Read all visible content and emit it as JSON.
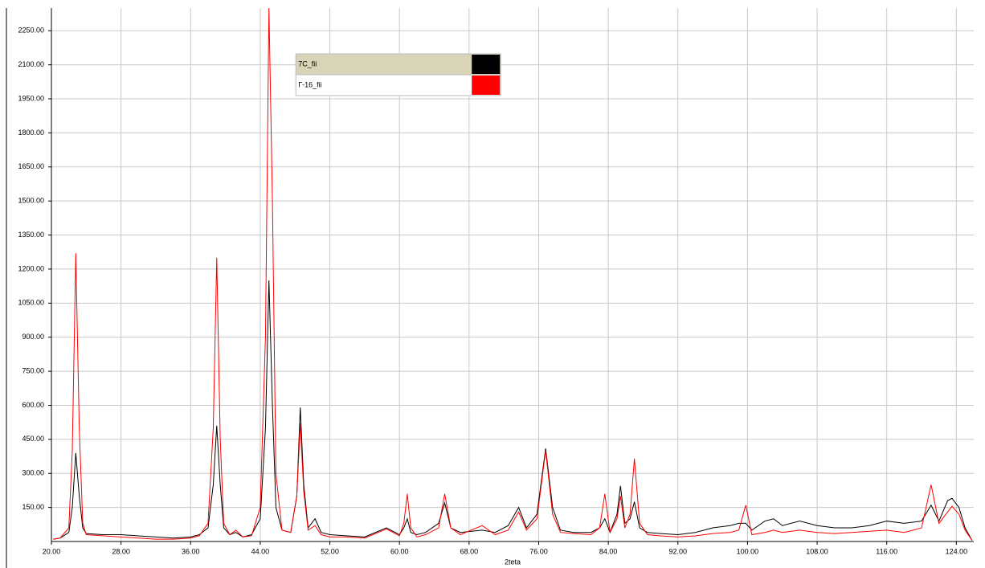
{
  "chart_data": {
    "type": "line",
    "xlabel": "2teta",
    "x": [
      20.2,
      21,
      22,
      22.4,
      22.8,
      23.2,
      23.6,
      24,
      26,
      28,
      30,
      32,
      34,
      36,
      37,
      38,
      38.6,
      39,
      39.4,
      39.8,
      40.5,
      41.2,
      42,
      43,
      44,
      44.6,
      45,
      45.4,
      45.8,
      46.5,
      47.5,
      48.2,
      48.6,
      49,
      49.5,
      50.3,
      51,
      52,
      54,
      56,
      58.5,
      60,
      60.5,
      60.9,
      61.3,
      62,
      63,
      64.5,
      65.2,
      65.9,
      67,
      69.5,
      71,
      72.5,
      73.7,
      74.6,
      75.8,
      76.8,
      77.6,
      78.5,
      80,
      82,
      83,
      83.6,
      84.2,
      85,
      85.4,
      85.9,
      86.5,
      87,
      87.6,
      88.5,
      90,
      92,
      94,
      96,
      98,
      99,
      99.8,
      100.5,
      102,
      103,
      104,
      106,
      108,
      110,
      112,
      114,
      116,
      118,
      120,
      121.1,
      122,
      123,
      123.5,
      124.3,
      125,
      125.8
    ],
    "series": [
      {
        "name": "7C_fii",
        "color": "#000000",
        "values": [
          10,
          15,
          40,
          150,
          390,
          200,
          60,
          35,
          30,
          30,
          25,
          20,
          15,
          20,
          30,
          60,
          250,
          510,
          250,
          60,
          30,
          40,
          20,
          30,
          100,
          500,
          1150,
          600,
          150,
          50,
          40,
          200,
          590,
          250,
          60,
          100,
          40,
          30,
          25,
          20,
          60,
          30,
          60,
          100,
          40,
          30,
          40,
          80,
          170,
          60,
          40,
          50,
          40,
          70,
          150,
          60,
          120,
          410,
          150,
          50,
          40,
          40,
          60,
          100,
          40,
          120,
          245,
          80,
          100,
          175,
          60,
          40,
          35,
          30,
          40,
          60,
          70,
          80,
          80,
          50,
          90,
          100,
          70,
          90,
          70,
          60,
          60,
          70,
          90,
          80,
          90,
          160,
          90,
          180,
          190,
          150,
          60,
          5
        ]
      },
      {
        "name": "Г-16_fii",
        "color": "#ff0000",
        "values": [
          10,
          15,
          60,
          400,
          1270,
          500,
          80,
          30,
          25,
          20,
          15,
          10,
          10,
          15,
          25,
          80,
          500,
          1250,
          450,
          80,
          30,
          50,
          20,
          25,
          150,
          900,
          2350,
          1500,
          300,
          50,
          40,
          200,
          520,
          220,
          50,
          70,
          30,
          20,
          20,
          15,
          55,
          25,
          80,
          210,
          60,
          20,
          30,
          60,
          210,
          60,
          30,
          70,
          30,
          50,
          130,
          50,
          100,
          400,
          120,
          40,
          35,
          30,
          60,
          210,
          40,
          100,
          200,
          60,
          120,
          365,
          80,
          30,
          25,
          20,
          25,
          35,
          40,
          50,
          160,
          30,
          40,
          50,
          40,
          50,
          40,
          35,
          40,
          45,
          50,
          40,
          60,
          250,
          80,
          130,
          155,
          120,
          50,
          5
        ]
      }
    ],
    "xlim": [
      20,
      126
    ],
    "xticks": [
      {
        "value": 20,
        "label": "20.00"
      },
      {
        "value": 28,
        "label": "28.00"
      },
      {
        "value": 36,
        "label": "36.00"
      },
      {
        "value": 44,
        "label": "44.00"
      },
      {
        "value": 52,
        "label": "52.00"
      },
      {
        "value": 60,
        "label": "60.00"
      },
      {
        "value": 68,
        "label": "68.00"
      },
      {
        "value": 76,
        "label": "76.00"
      },
      {
        "value": 84,
        "label": "84.00"
      },
      {
        "value": 92,
        "label": "92.00"
      },
      {
        "value": 100,
        "label": "100.00"
      },
      {
        "value": 108,
        "label": "108.00"
      },
      {
        "value": 116,
        "label": "116.00"
      },
      {
        "value": 124,
        "label": "124.00"
      }
    ],
    "ylim": [
      0,
      2350
    ],
    "yticks": [
      {
        "value": 150,
        "label": "150.00"
      },
      {
        "value": 300,
        "label": "300.00"
      },
      {
        "value": 450,
        "label": "450.00"
      },
      {
        "value": 600,
        "label": "600.00"
      },
      {
        "value": 750,
        "label": "750.00"
      },
      {
        "value": 900,
        "label": "900.00"
      },
      {
        "value": 1050,
        "label": "1050.00"
      },
      {
        "value": 1200,
        "label": "1200.00"
      },
      {
        "value": 1350,
        "label": "1350.00"
      },
      {
        "value": 1500,
        "label": "1500.00"
      },
      {
        "value": 1650,
        "label": "1650.00"
      },
      {
        "value": 1800,
        "label": "1800.00"
      },
      {
        "value": 1950,
        "label": "1950.00"
      },
      {
        "value": 2100,
        "label": "2100.00"
      },
      {
        "value": 2250,
        "label": "2250.00"
      }
    ],
    "grid": true,
    "legend": "upper center"
  }
}
